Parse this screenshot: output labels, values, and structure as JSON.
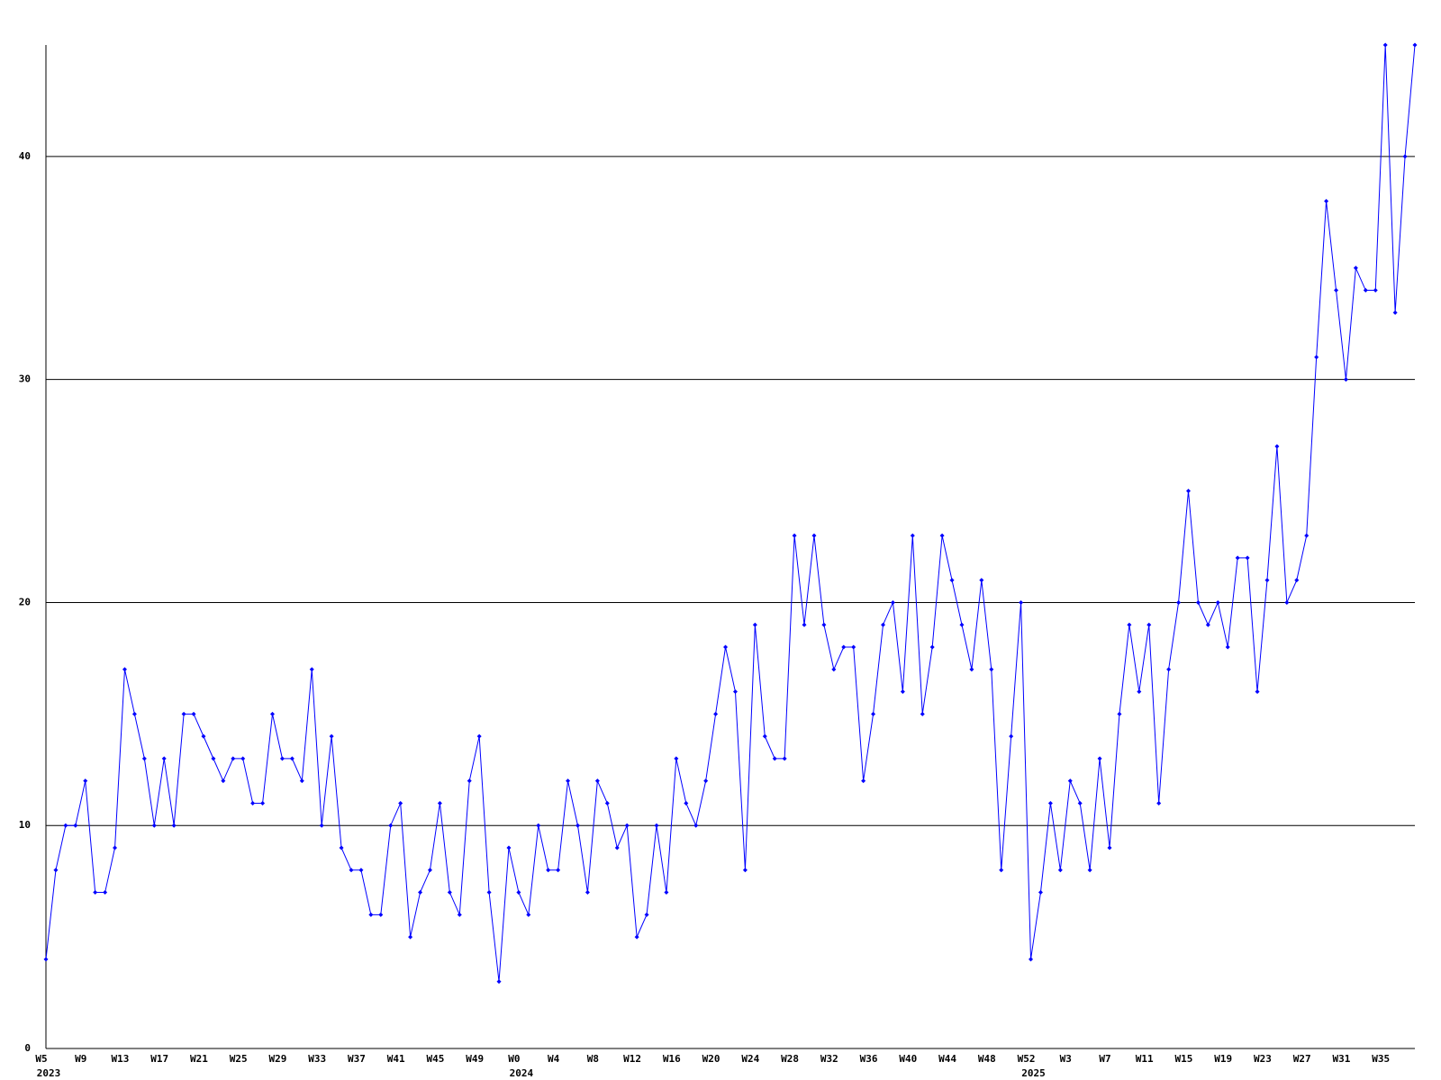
{
  "chart_data": {
    "type": "line",
    "categories": [
      "W5",
      null,
      null,
      null,
      "W9",
      null,
      null,
      null,
      "W13",
      null,
      null,
      null,
      "W17",
      null,
      null,
      null,
      "W21",
      null,
      null,
      null,
      "W25",
      null,
      null,
      null,
      "W29",
      null,
      null,
      null,
      "W33",
      null,
      null,
      null,
      "W37",
      null,
      null,
      null,
      "W41",
      null,
      null,
      null,
      "W45",
      null,
      null,
      null,
      "W49",
      null,
      null,
      null,
      "W0",
      null,
      null,
      null,
      "W4",
      null,
      null,
      null,
      "W8",
      null,
      null,
      null,
      "W12",
      null,
      null,
      null,
      "W16",
      null,
      null,
      null,
      "W20",
      null,
      null,
      null,
      "W24",
      null,
      null,
      null,
      "W28",
      null,
      null,
      null,
      "W32",
      null,
      null,
      null,
      "W36",
      null,
      null,
      null,
      "W40",
      null,
      null,
      null,
      "W44",
      null,
      null,
      null,
      "W48",
      null,
      null,
      null,
      "W52",
      null,
      null,
      null,
      "W3",
      null,
      null,
      null,
      "W7",
      null,
      null,
      null,
      "W11",
      null,
      null,
      null,
      "W15",
      null,
      null,
      null,
      "W19",
      null,
      null,
      null,
      "W23",
      null,
      null,
      null,
      "W27",
      null,
      null,
      null,
      "W31",
      null,
      null,
      null,
      "W35",
      null,
      null,
      null
    ],
    "category_groups": [
      "2023",
      null,
      null,
      null,
      null,
      null,
      null,
      null,
      null,
      null,
      null,
      null,
      null,
      null,
      null,
      null,
      null,
      null,
      null,
      null,
      null,
      null,
      null,
      null,
      null,
      null,
      null,
      null,
      null,
      null,
      null,
      null,
      null,
      null,
      null,
      null,
      null,
      null,
      null,
      null,
      null,
      null,
      null,
      null,
      null,
      null,
      null,
      null,
      "2024",
      null,
      null,
      null,
      null,
      null,
      null,
      null,
      null,
      null,
      null,
      null,
      null,
      null,
      null,
      null,
      null,
      null,
      null,
      null,
      null,
      null,
      null,
      null,
      null,
      null,
      null,
      null,
      null,
      null,
      null,
      null,
      null,
      null,
      null,
      null,
      null,
      null,
      null,
      null,
      null,
      null,
      null,
      null,
      null,
      null,
      null,
      null,
      null,
      null,
      null,
      null,
      "2025",
      null,
      null,
      null,
      null,
      null,
      null,
      null,
      null,
      null,
      null,
      null,
      null,
      null,
      null,
      null,
      null,
      null,
      null,
      null,
      null,
      null,
      null,
      null,
      null,
      null,
      null,
      null,
      null,
      null,
      null,
      null,
      null,
      null,
      null,
      null,
      null,
      null,
      null,
      null
    ],
    "values": [
      4,
      8,
      10,
      10,
      12,
      7,
      7,
      9,
      17,
      15,
      13,
      10,
      13,
      10,
      15,
      15,
      14,
      13,
      12,
      13,
      13,
      11,
      11,
      15,
      13,
      13,
      12,
      17,
      10,
      14,
      9,
      8,
      8,
      6,
      6,
      10,
      11,
      5,
      7,
      8,
      11,
      7,
      6,
      12,
      14,
      7,
      3,
      9,
      7,
      6,
      10,
      8,
      8,
      12,
      10,
      7,
      12,
      11,
      9,
      10,
      5,
      6,
      10,
      7,
      13,
      11,
      10,
      12,
      15,
      18,
      16,
      8,
      19,
      14,
      13,
      13,
      23,
      19,
      23,
      19,
      17,
      18,
      18,
      12,
      15,
      19,
      20,
      16,
      23,
      15,
      18,
      23,
      21,
      19,
      17,
      21,
      17,
      8,
      14,
      20,
      4,
      7,
      11,
      8,
      12,
      11,
      8,
      13,
      9,
      15,
      19,
      16,
      19,
      11,
      17,
      20,
      25,
      20,
      19,
      20,
      18,
      22,
      22,
      16,
      21,
      27,
      20,
      21,
      23,
      31,
      38,
      34,
      30,
      35,
      34,
      34,
      45,
      33,
      40,
      45
    ],
    "color": "#0000ff",
    "ylim": [
      0,
      45
    ],
    "yticks": [
      0,
      10,
      20,
      30,
      40
    ],
    "grid": true
  }
}
